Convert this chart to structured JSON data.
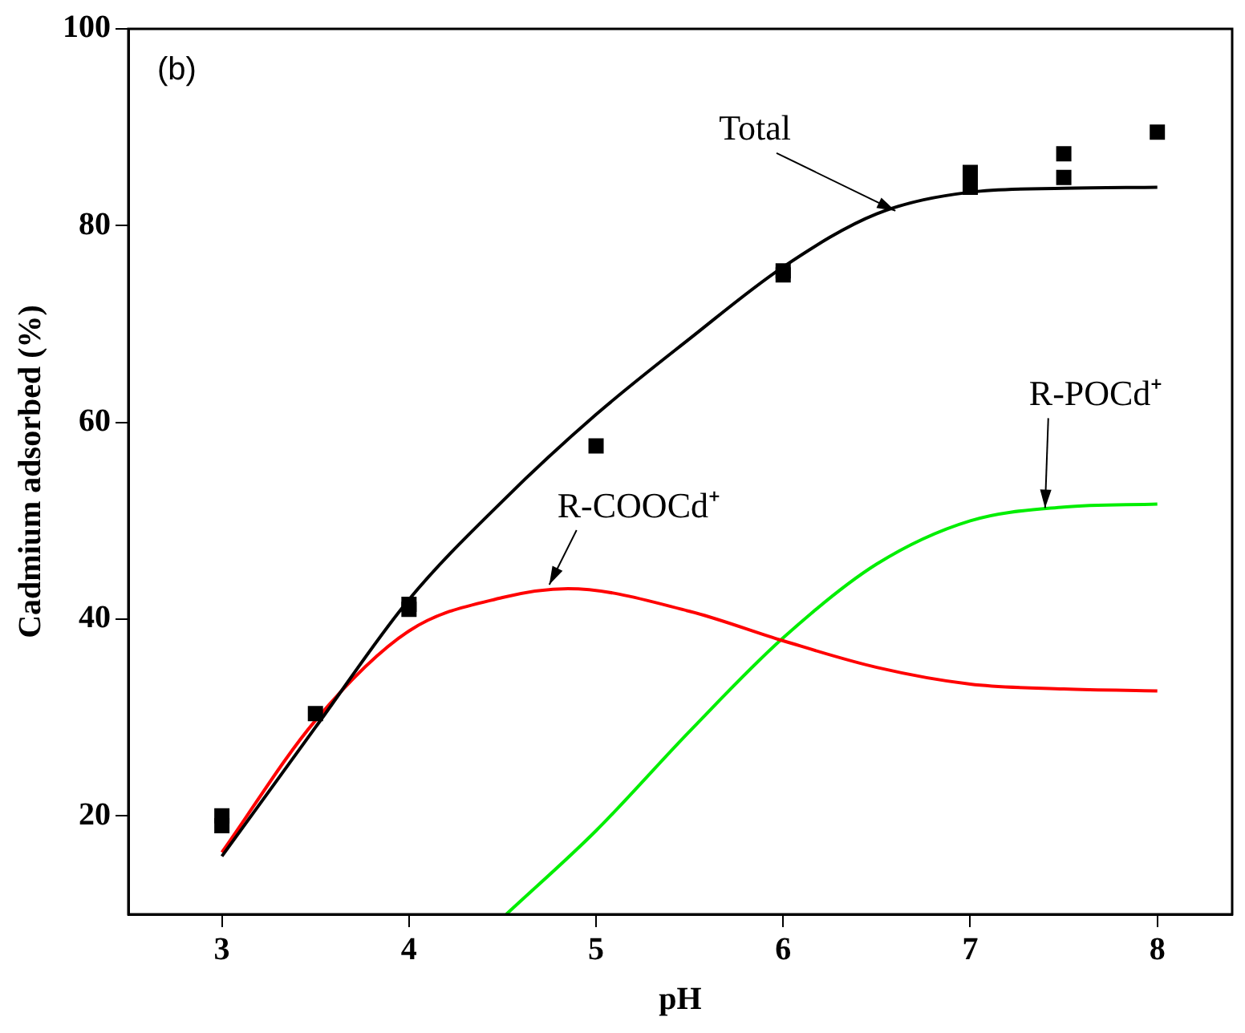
{
  "chart_data": {
    "type": "line",
    "xlabel": "pH",
    "ylabel": "Cadmium adsorbed (%)",
    "xlim": [
      2.5,
      8.4
    ],
    "xticks": [
      3,
      4,
      5,
      6,
      7,
      8
    ],
    "ylim": [
      10,
      100
    ],
    "yticks": [
      20,
      40,
      60,
      80,
      100
    ],
    "grid": false,
    "legend": false,
    "series": [
      {
        "type": "scatter",
        "marker": "square",
        "color": "#000000",
        "x": [
          3,
          3,
          3.5,
          4,
          4,
          5,
          6,
          6,
          7,
          7,
          7.5,
          7.5,
          8
        ],
        "values": [
          19,
          20,
          30.4,
          41.5,
          41,
          57.6,
          75.4,
          75,
          85.4,
          83.9,
          87.3,
          84.9,
          89.5
        ]
      },
      {
        "type": "line",
        "marker": "none",
        "color": "#000000",
        "x": [
          3,
          3.5,
          4,
          4.5,
          5,
          5.5,
          6,
          6.5,
          7,
          7.5,
          8
        ],
        "values": [
          15.9,
          29,
          42,
          52,
          60.8,
          68.5,
          75.8,
          81.2,
          83.4,
          83.8,
          83.9
        ]
      },
      {
        "type": "line",
        "marker": "none",
        "color": "#ff0000",
        "x": [
          3,
          3.5,
          4,
          4.5,
          4.85,
          5.5,
          6,
          6.5,
          7,
          7.5,
          8
        ],
        "values": [
          16.3,
          29.7,
          38.8,
          42.2,
          43.1,
          40.8,
          37.8,
          35.1,
          33.4,
          32.9,
          32.7
        ]
      },
      {
        "type": "line",
        "marker": "none",
        "color": "#00ee00",
        "x": [
          4.52,
          5,
          5.5,
          6,
          6.5,
          7,
          7.5,
          8
        ],
        "values": [
          10,
          18.5,
          28.6,
          38.1,
          45.6,
          50,
          51.4,
          51.7
        ]
      }
    ],
    "annotations": [
      "(b)",
      {
        "text": "Total",
        "x": 6.6,
        "y": 81.5
      },
      {
        "text": "R-COOCd⁺",
        "x": 4.75,
        "y": 43.5
      },
      {
        "text": "R-POCd⁺",
        "x": 7.4,
        "y": 51.3
      }
    ]
  }
}
